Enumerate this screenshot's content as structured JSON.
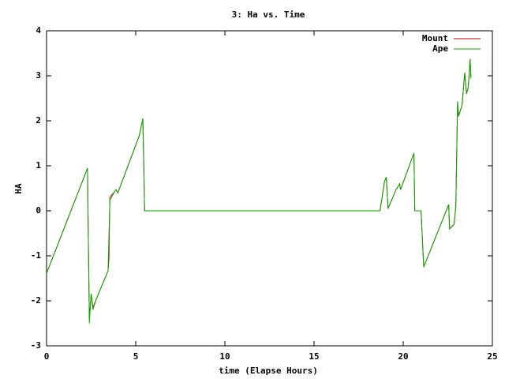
{
  "chart_data": {
    "type": "line",
    "title": "3: Ha vs. Time",
    "x_label": "time (Elapse Hours)",
    "y_label": "HA",
    "xlim": [
      0,
      25
    ],
    "ylim": [
      -3,
      4
    ],
    "xticks": [
      0,
      5,
      10,
      15,
      20,
      25
    ],
    "yticks": [
      -3,
      -2,
      -1,
      0,
      1,
      2,
      3,
      4
    ],
    "legend": "upper right",
    "series": [
      {
        "name": "Mount",
        "color": "#cc0000",
        "x": [
          0,
          2.3,
          2.32,
          2.4,
          2.5,
          2.6,
          2.75,
          3.45,
          3.5,
          3.55,
          3.8,
          3.9,
          4.0,
          5.2,
          5.4,
          5.5,
          18.7,
          18.95,
          19.05,
          19.15,
          19.6,
          19.8,
          19.85,
          20.6,
          20.65,
          21.0,
          21.15,
          21.35,
          22.55,
          22.6,
          22.85,
          22.95,
          23.05,
          23.1,
          23.3,
          23.45,
          23.55,
          23.65,
          23.75,
          23.8
        ],
        "values": [
          -1.39,
          0.95,
          0.1,
          -2.4,
          -1.84,
          -2.15,
          -2.0,
          -1.33,
          -1.05,
          0.3,
          0.42,
          0.47,
          0.4,
          1.67,
          2.05,
          0,
          0,
          0.65,
          0.75,
          0.05,
          0.47,
          0.6,
          0.47,
          1.28,
          0,
          0,
          -1.25,
          -1.05,
          0.14,
          -0.4,
          -0.3,
          0.09,
          2.43,
          2.1,
          2.35,
          3.07,
          2.6,
          2.75,
          3.37,
          2.95
        ]
      },
      {
        "name": "Ape",
        "color": "#00aa00",
        "x": [
          0,
          2.3,
          2.32,
          2.4,
          2.5,
          2.6,
          2.75,
          3.45,
          3.55,
          3.6,
          3.8,
          3.9,
          4.0,
          5.2,
          5.4,
          5.5,
          18.7,
          18.95,
          19.05,
          19.15,
          19.6,
          19.8,
          19.85,
          20.6,
          20.65,
          21.0,
          21.15,
          21.35,
          22.55,
          22.6,
          22.85,
          22.95,
          23.05,
          23.1,
          23.3,
          23.45,
          23.55,
          23.65,
          23.75,
          23.8
        ],
        "values": [
          -1.39,
          0.95,
          0.1,
          -2.5,
          -1.84,
          -2.2,
          -2.0,
          -1.33,
          0.26,
          0.26,
          0.42,
          0.47,
          0.4,
          1.67,
          2.05,
          0,
          0,
          0.65,
          0.75,
          0.05,
          0.47,
          0.6,
          0.47,
          1.28,
          0,
          0,
          -1.25,
          -1.05,
          0.14,
          -0.4,
          -0.3,
          0.09,
          2.43,
          2.1,
          2.35,
          3.07,
          2.6,
          2.75,
          3.37,
          2.95
        ]
      }
    ]
  }
}
